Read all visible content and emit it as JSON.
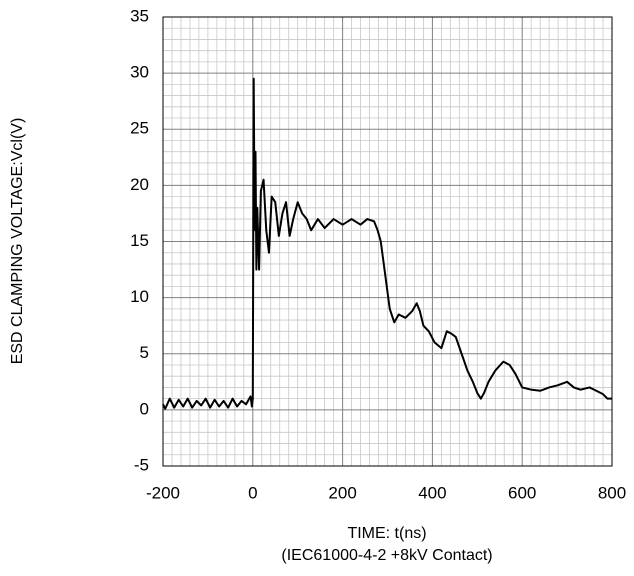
{
  "chart_data": {
    "type": "line",
    "ylabel": "ESD CLAMPING VOLTAGE:Vcl(V)",
    "xlabel": [
      "TIME: t(ns)",
      "(IEC61000-4-2 +8kV Contact)"
    ],
    "xlim": [
      -200,
      800
    ],
    "ylim": [
      -5,
      35
    ],
    "xticks": [
      -200,
      0,
      200,
      400,
      600,
      800
    ],
    "yticks": [
      -5,
      0,
      5,
      10,
      15,
      20,
      25,
      30,
      35
    ],
    "xminorticks": [
      -180,
      -160,
      -140,
      -120,
      -100,
      -80,
      -60,
      -40,
      -20,
      20,
      40,
      60,
      80,
      100,
      120,
      140,
      160,
      180,
      220,
      240,
      260,
      280,
      300,
      320,
      340,
      360,
      380,
      420,
      440,
      460,
      480,
      500,
      520,
      540,
      560,
      580,
      620,
      640,
      660,
      680,
      700,
      720,
      740,
      760,
      780
    ],
    "yminorticks": [
      -4,
      -3,
      -2,
      -1,
      1,
      2,
      3,
      4,
      6,
      7,
      8,
      9,
      11,
      12,
      13,
      14,
      16,
      17,
      18,
      19,
      21,
      22,
      23,
      24,
      26,
      27,
      28,
      29,
      31,
      32,
      33,
      34
    ],
    "grid": true,
    "series": [
      {
        "color": "#000000",
        "x": [
          -200,
          -195,
          -185,
          -175,
          -165,
          -155,
          -145,
          -135,
          -125,
          -115,
          -105,
          -95,
          -85,
          -75,
          -65,
          -55,
          -45,
          -35,
          -25,
          -15,
          -5,
          -2,
          0,
          2,
          4,
          6,
          8,
          10,
          14,
          18,
          24,
          30,
          36,
          42,
          50,
          58,
          66,
          74,
          82,
          90,
          100,
          110,
          120,
          130,
          145,
          160,
          180,
          200,
          220,
          240,
          255,
          270,
          278,
          285,
          295,
          305,
          315,
          325,
          340,
          355,
          365,
          372,
          380,
          392,
          405,
          420,
          432,
          442,
          452,
          465,
          478,
          490,
          500,
          508,
          515,
          525,
          540,
          558,
          572,
          585,
          600,
          620,
          640,
          660,
          680,
          700,
          715,
          730,
          750,
          765,
          780,
          790,
          800
        ],
        "values": [
          0.5,
          0.1,
          1.0,
          0.2,
          0.9,
          0.3,
          1.0,
          0.2,
          0.8,
          0.4,
          1.0,
          0.2,
          0.9,
          0.3,
          0.8,
          0.2,
          1.0,
          0.3,
          0.8,
          0.5,
          1.2,
          0.3,
          1.0,
          29.5,
          16,
          23,
          12.5,
          18,
          12.5,
          19.5,
          20.5,
          16,
          14,
          19,
          18.5,
          15.5,
          17.5,
          18.5,
          15.5,
          17,
          18.5,
          17.5,
          17,
          16,
          17,
          16.2,
          17,
          16.5,
          17,
          16.5,
          17,
          16.8,
          16,
          15,
          12,
          9,
          7.8,
          8.5,
          8.2,
          8.8,
          9.5,
          8.8,
          7.5,
          7,
          6,
          5.5,
          7,
          6.8,
          6.5,
          5,
          3.5,
          2.5,
          1.5,
          1,
          1.5,
          2.5,
          3.5,
          4.3,
          4,
          3.2,
          2,
          1.8,
          1.7,
          2,
          2.2,
          2.5,
          2,
          1.8,
          2,
          1.7,
          1.4,
          1,
          1
        ]
      }
    ]
  }
}
